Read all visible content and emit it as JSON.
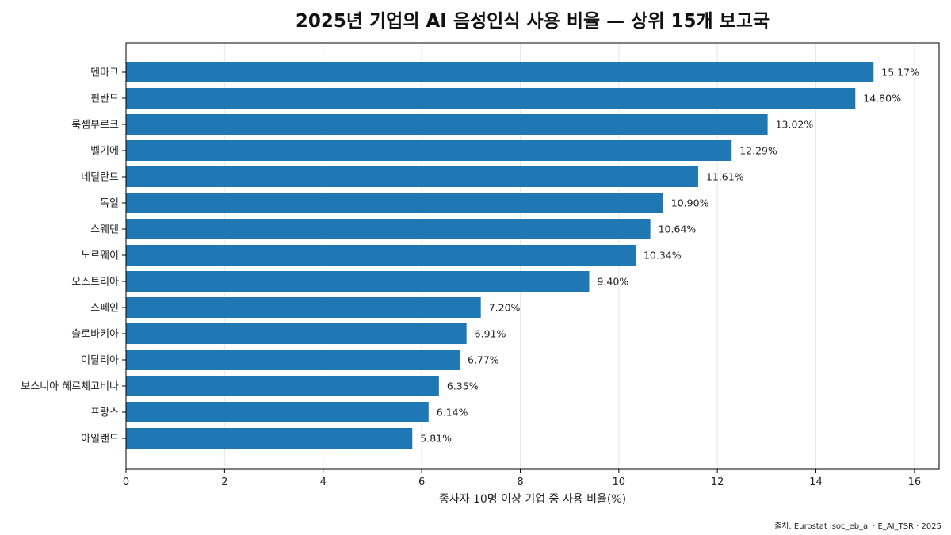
{
  "chart_data": {
    "type": "bar",
    "orientation": "horizontal",
    "title": "2025년 기업의 AI 음성인식 사용 비율 — 상위 15개 보고국",
    "xlabel": "종사자 10명 이상 기업 중 사용 비율(%)",
    "ylabel": "",
    "xlim": [
      0,
      16.5
    ],
    "xticks": [
      0,
      2,
      4,
      6,
      8,
      10,
      12,
      14,
      16
    ],
    "grid": "vertical",
    "categories": [
      "덴마크",
      "핀란드",
      "룩셈부르크",
      "벨기에",
      "네덜란드",
      "독일",
      "스웨덴",
      "노르웨이",
      "오스트리아",
      "스페인",
      "슬로바키아",
      "이탈리아",
      "보스니아 헤르체고비나",
      "프랑스",
      "아일랜드"
    ],
    "values": [
      15.17,
      14.8,
      13.02,
      12.29,
      11.61,
      10.9,
      10.64,
      10.34,
      9.4,
      7.2,
      6.91,
      6.77,
      6.35,
      6.14,
      5.81
    ],
    "value_labels": [
      "15.17%",
      "14.80%",
      "13.02%",
      "12.29%",
      "11.61%",
      "10.90%",
      "10.64%",
      "10.34%",
      "9.40%",
      "7.20%",
      "6.91%",
      "6.77%",
      "6.35%",
      "6.14%",
      "5.81%"
    ],
    "bar_color": "#1f77b4",
    "source": "출처: Eurostat isoc_eb_ai · E_AI_TSR · 2025"
  }
}
